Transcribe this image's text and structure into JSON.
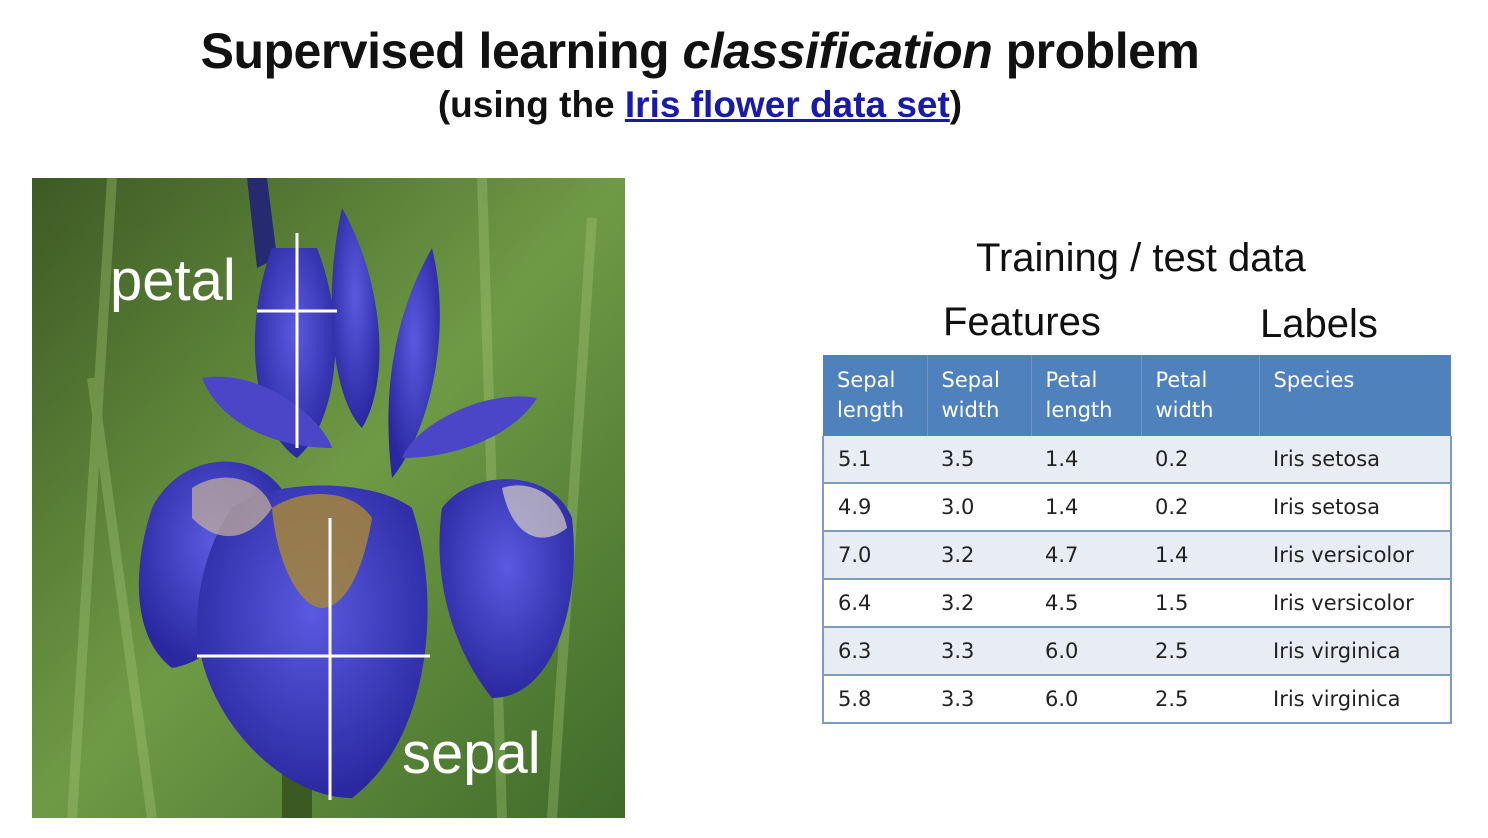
{
  "title": {
    "part1": "Supervised learning ",
    "italic": "classification",
    "part2": " problem"
  },
  "subtitle": {
    "open": "(using the ",
    "link": "Iris flower data set",
    "close": ")"
  },
  "image": {
    "petal_label": "petal",
    "sepal_label": "sepal"
  },
  "table_section": {
    "heading": "Training / test data",
    "features_label": "Features",
    "labels_label": "Labels",
    "columns": [
      "Sepal length",
      "Sepal width",
      "Petal length",
      "Petal width",
      "Species"
    ],
    "rows": [
      [
        "5.1",
        "3.5",
        "1.4",
        "0.2",
        "Iris setosa"
      ],
      [
        "4.9",
        "3.0",
        "1.4",
        "0.2",
        "Iris setosa"
      ],
      [
        "7.0",
        "3.2",
        "4.7",
        "1.4",
        "Iris versicolor"
      ],
      [
        "6.4",
        "3.2",
        "4.5",
        "1.5",
        "Iris versicolor"
      ],
      [
        "6.3",
        "3.3",
        "6.0",
        "2.5",
        "Iris virginica"
      ],
      [
        "5.8",
        "3.3",
        "6.0",
        "2.5",
        "Iris virginica"
      ]
    ],
    "header_color": "#4f81bd"
  }
}
